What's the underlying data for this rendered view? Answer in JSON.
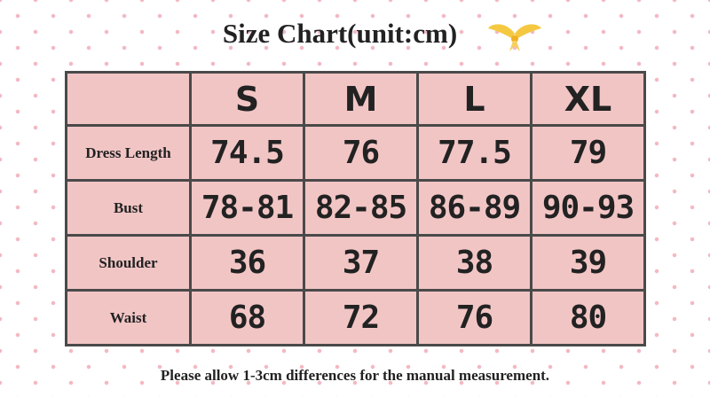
{
  "header": {
    "title": "Size Chart(unit:cm)"
  },
  "table": {
    "columns": [
      "S",
      "M",
      "L",
      "XL"
    ],
    "rows": [
      {
        "label": "Dress Length",
        "cells": [
          "74.5",
          "76",
          "77.5",
          "79"
        ]
      },
      {
        "label": "Bust",
        "cells": [
          "78-81",
          "82-85",
          "86-89",
          "90-93"
        ]
      },
      {
        "label": "Shoulder",
        "cells": [
          "36",
          "37",
          "38",
          "39"
        ]
      },
      {
        "label": "Waist",
        "cells": [
          "68",
          "72",
          "76",
          "80"
        ]
      }
    ]
  },
  "footer": {
    "note": "Please allow 1-3cm differences for the manual measurement."
  }
}
